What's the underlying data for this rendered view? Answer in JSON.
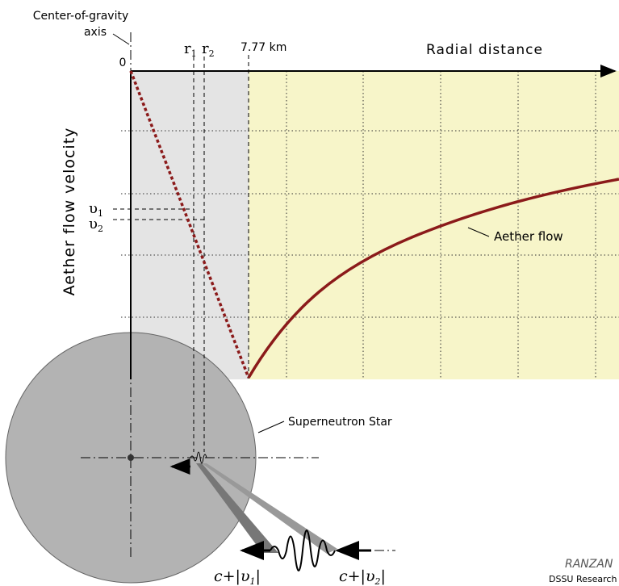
{
  "labels": {
    "cog_axis": [
      "Center-of-gravity",
      "axis"
    ],
    "origin": "0",
    "r1": {
      "base": "r",
      "sub": "1"
    },
    "r2": {
      "base": "r",
      "sub": "2"
    },
    "boundary": "7.77 km",
    "x_axis": "Radial distance",
    "y_axis": "Aether flow velocity",
    "v1": {
      "base": "υ",
      "sub": "1"
    },
    "v2": {
      "base": "υ",
      "sub": "2"
    },
    "curve": "Aether flow",
    "star": "Superneutron Star",
    "speed1": {
      "base": "c+|υ",
      "sub": "1",
      "end": "|"
    },
    "speed2": {
      "base": "c+|υ",
      "sub": "2",
      "end": "|"
    },
    "logo": "RANZAN",
    "credit": "DSSU Research"
  }
}
